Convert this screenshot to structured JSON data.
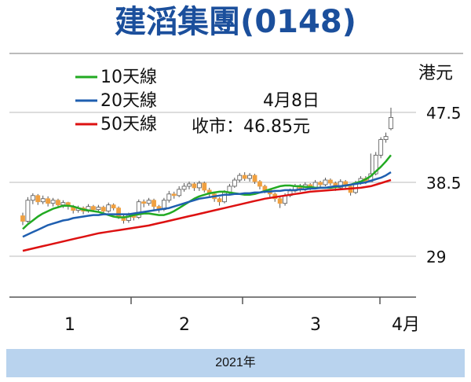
{
  "title": "建滔集團(0148)",
  "footer": "2021年",
  "annotation": {
    "line1": "4月8日",
    "line2": "收市：46.85元"
  },
  "colors": {
    "title": "#1b4f9c",
    "up": "#ffffff",
    "down": "#f0a040",
    "ma10": "#22aa22",
    "ma20": "#1f5fb0",
    "ma50": "#dd1111",
    "grid": "#bbbbbb",
    "footer_bg": "#b9d3ee"
  },
  "chart_data": {
    "type": "line",
    "yunit": "港元",
    "y_ticks": [
      47.5,
      38.5,
      29
    ],
    "ylim": [
      24,
      52
    ],
    "x_labels": [
      "1",
      "2",
      "3",
      "4月"
    ],
    "legend": [
      "10天線",
      "20天線",
      "50天線"
    ],
    "series": [
      {
        "name": "10天線",
        "values": [
          32.5,
          33.1,
          33.6,
          34.1,
          34.5,
          34.8,
          35.1,
          35.3,
          35.5,
          35.5,
          35.4,
          35.2,
          35.0,
          34.9,
          34.8,
          34.7,
          34.5,
          34.3,
          34.1,
          34.0,
          34.0,
          34.1,
          34.3,
          34.4,
          34.5,
          34.5,
          34.4,
          34.3,
          34.3,
          34.5,
          34.8,
          35.2,
          35.6,
          36.0,
          36.4,
          36.7,
          36.9,
          37.1,
          37.2,
          37.3,
          37.3,
          37.2,
          37.1,
          37.0,
          36.9,
          36.9,
          37.0,
          37.2,
          37.4,
          37.6,
          37.8,
          38.0,
          38.1,
          38.1,
          38.0,
          38.0,
          37.9,
          37.9,
          37.8,
          37.8,
          37.8,
          37.8,
          37.9,
          38.0,
          38.1,
          38.2,
          38.4,
          38.6,
          38.9,
          39.3,
          39.9,
          40.5,
          41.2,
          42.0
        ]
      },
      {
        "name": "20天線",
        "values": [
          31.5,
          31.8,
          32.1,
          32.4,
          32.7,
          33.0,
          33.2,
          33.4,
          33.6,
          33.7,
          33.9,
          34.0,
          34.1,
          34.2,
          34.3,
          34.3,
          34.4,
          34.4,
          34.4,
          34.4,
          34.4,
          34.4,
          34.5,
          34.6,
          34.7,
          34.8,
          34.9,
          35.0,
          35.1,
          35.2,
          35.4,
          35.6,
          35.8,
          36.0,
          36.2,
          36.4,
          36.5,
          36.6,
          36.7,
          36.8,
          36.9,
          36.9,
          37.0,
          37.0,
          37.1,
          37.1,
          37.2,
          37.2,
          37.3,
          37.3,
          37.4,
          37.4,
          37.5,
          37.5,
          37.5,
          37.6,
          37.6,
          37.7,
          37.7,
          37.8,
          37.8,
          37.9,
          38.0,
          38.0,
          38.1,
          38.2,
          38.3,
          38.4,
          38.5,
          38.7,
          38.9,
          39.1,
          39.4,
          39.8
        ]
      },
      {
        "name": "50天線",
        "values": [
          29.7,
          29.85,
          30.0,
          30.15,
          30.3,
          30.45,
          30.6,
          30.75,
          30.9,
          31.05,
          31.2,
          31.35,
          31.5,
          31.65,
          31.8,
          31.95,
          32.05,
          32.15,
          32.25,
          32.35,
          32.45,
          32.55,
          32.65,
          32.75,
          32.85,
          32.95,
          33.1,
          33.25,
          33.4,
          33.55,
          33.7,
          33.85,
          34.0,
          34.15,
          34.3,
          34.45,
          34.6,
          34.75,
          34.9,
          35.05,
          35.2,
          35.35,
          35.5,
          35.65,
          35.8,
          35.95,
          36.1,
          36.25,
          36.4,
          36.5,
          36.6,
          36.7,
          36.8,
          36.9,
          37.0,
          37.1,
          37.2,
          37.3,
          37.35,
          37.4,
          37.45,
          37.5,
          37.55,
          37.6,
          37.65,
          37.7,
          37.75,
          37.8,
          37.9,
          38.0,
          38.2,
          38.4,
          38.6,
          38.8
        ]
      }
    ],
    "candles": [
      [
        34.2,
        33.5,
        34.6,
        33.0
      ],
      [
        33.5,
        36.2,
        36.6,
        33.3
      ],
      [
        36.2,
        36.8,
        37.1,
        35.7
      ],
      [
        36.8,
        36.0,
        37.0,
        35.6
      ],
      [
        36.0,
        36.4,
        36.8,
        35.7
      ],
      [
        36.4,
        35.8,
        36.7,
        35.4
      ],
      [
        35.8,
        36.2,
        36.5,
        35.4
      ],
      [
        36.2,
        35.6,
        36.4,
        35.2
      ],
      [
        35.6,
        35.9,
        36.2,
        35.2
      ],
      [
        35.9,
        35.4,
        36.0,
        35.0
      ],
      [
        35.4,
        34.9,
        35.6,
        34.5
      ],
      [
        34.9,
        35.2,
        35.5,
        34.6
      ],
      [
        35.2,
        34.8,
        35.4,
        34.4
      ],
      [
        34.8,
        35.4,
        35.7,
        34.6
      ],
      [
        35.4,
        35.0,
        35.6,
        34.7
      ],
      [
        35.0,
        35.3,
        35.6,
        34.8
      ],
      [
        35.3,
        34.8,
        35.5,
        34.5
      ],
      [
        34.8,
        35.6,
        35.9,
        34.6
      ],
      [
        35.6,
        35.2,
        35.8,
        34.9
      ],
      [
        35.2,
        34.1,
        35.4,
        33.8
      ],
      [
        34.1,
        33.6,
        34.4,
        33.2
      ],
      [
        33.6,
        34.3,
        34.6,
        33.3
      ],
      [
        34.3,
        34.0,
        34.5,
        33.6
      ],
      [
        34.0,
        36.0,
        36.3,
        33.8
      ],
      [
        36.0,
        35.8,
        36.3,
        35.3
      ],
      [
        35.8,
        36.2,
        36.5,
        35.5
      ],
      [
        36.2,
        35.4,
        36.4,
        35.0
      ],
      [
        35.4,
        35.0,
        35.6,
        34.6
      ],
      [
        35.0,
        36.2,
        36.5,
        34.8
      ],
      [
        36.2,
        37.0,
        37.4,
        35.9
      ],
      [
        37.0,
        36.8,
        37.3,
        36.4
      ],
      [
        36.8,
        37.6,
        38.0,
        36.6
      ],
      [
        37.6,
        38.0,
        38.4,
        37.3
      ],
      [
        38.0,
        38.3,
        38.6,
        37.6
      ],
      [
        38.3,
        37.8,
        38.5,
        37.4
      ],
      [
        37.8,
        38.4,
        38.7,
        37.4
      ],
      [
        38.4,
        37.5,
        38.6,
        37.2
      ],
      [
        37.5,
        37.0,
        37.8,
        36.6
      ],
      [
        37.0,
        36.4,
        37.2,
        36.0
      ],
      [
        36.4,
        36.0,
        36.6,
        35.5
      ],
      [
        36.0,
        37.2,
        37.5,
        35.8
      ],
      [
        37.2,
        38.0,
        38.3,
        36.9
      ],
      [
        38.0,
        38.8,
        39.1,
        37.8
      ],
      [
        38.8,
        39.4,
        39.7,
        38.5
      ],
      [
        39.4,
        39.0,
        39.8,
        38.7
      ],
      [
        39.0,
        39.4,
        39.7,
        38.6
      ],
      [
        39.4,
        38.6,
        39.6,
        38.3
      ],
      [
        38.6,
        38.0,
        38.8,
        37.6
      ],
      [
        38.0,
        37.5,
        38.2,
        37.1
      ],
      [
        37.5,
        37.0,
        37.7,
        36.6
      ],
      [
        37.0,
        36.4,
        37.2,
        36.0
      ],
      [
        36.4,
        35.8,
        36.6,
        35.2
      ],
      [
        35.8,
        36.8,
        37.1,
        35.5
      ],
      [
        36.8,
        37.4,
        37.7,
        36.6
      ],
      [
        37.4,
        38.0,
        38.3,
        37.2
      ],
      [
        38.0,
        37.6,
        38.3,
        37.3
      ],
      [
        37.6,
        38.2,
        38.5,
        37.4
      ],
      [
        38.2,
        37.8,
        38.4,
        37.5
      ],
      [
        37.8,
        38.5,
        38.8,
        37.6
      ],
      [
        38.5,
        38.2,
        38.7,
        37.8
      ],
      [
        38.2,
        38.8,
        39.1,
        38.0
      ],
      [
        38.8,
        38.4,
        39.0,
        38.1
      ],
      [
        38.4,
        37.8,
        38.6,
        37.4
      ],
      [
        37.8,
        38.6,
        38.9,
        37.6
      ],
      [
        38.6,
        38.0,
        38.8,
        37.7
      ],
      [
        38.0,
        37.2,
        38.3,
        36.8
      ],
      [
        37.2,
        38.4,
        38.7,
        37.0
      ],
      [
        38.4,
        39.0,
        39.3,
        38.2
      ],
      [
        39.0,
        38.6,
        39.3,
        38.3
      ],
      [
        38.6,
        39.6,
        42.2,
        38.6
      ],
      [
        39.6,
        42.0,
        42.4,
        39.4
      ],
      [
        42.0,
        44.0,
        44.3,
        41.6
      ],
      [
        44.0,
        44.4,
        44.9,
        43.6
      ],
      [
        45.4,
        46.85,
        48.1,
        45.2
      ]
    ]
  }
}
